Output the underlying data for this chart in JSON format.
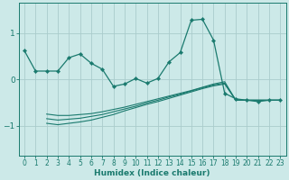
{
  "xlabel": "Humidex (Indice chaleur)",
  "bg_color": "#cce9e8",
  "grid_color": "#aacccc",
  "line_color": "#1a7a6e",
  "xlim": [
    -0.5,
    23.5
  ],
  "ylim": [
    -1.65,
    1.65
  ],
  "yticks": [
    -1,
    0,
    1
  ],
  "xticks": [
    0,
    1,
    2,
    3,
    4,
    5,
    6,
    7,
    8,
    9,
    10,
    11,
    12,
    13,
    14,
    15,
    16,
    17,
    18,
    19,
    20,
    21,
    22,
    23
  ],
  "main_line": {
    "x": [
      0,
      1,
      2,
      3,
      4,
      5,
      6,
      7,
      8,
      9,
      10,
      11,
      12,
      13,
      14,
      15,
      16,
      17,
      18,
      19,
      20,
      21,
      22,
      23
    ],
    "y": [
      0.62,
      0.18,
      0.18,
      0.18,
      0.47,
      0.55,
      0.35,
      0.22,
      -0.15,
      -0.1,
      0.02,
      -0.08,
      0.02,
      0.38,
      0.58,
      1.28,
      1.3,
      0.85,
      -0.3,
      -0.42,
      -0.45,
      -0.48,
      -0.45,
      -0.45
    ]
  },
  "lower_line1": {
    "x": [
      2,
      3,
      4,
      5,
      6,
      7,
      8,
      9,
      10,
      11,
      12,
      13,
      14,
      15,
      16,
      17,
      18,
      19,
      20,
      21,
      22,
      23
    ],
    "y": [
      -0.75,
      -0.78,
      -0.78,
      -0.76,
      -0.74,
      -0.7,
      -0.65,
      -0.6,
      -0.54,
      -0.48,
      -0.42,
      -0.36,
      -0.3,
      -0.24,
      -0.17,
      -0.1,
      -0.05,
      -0.45,
      -0.45,
      -0.45,
      -0.45,
      -0.45
    ]
  },
  "lower_line2": {
    "x": [
      2,
      3,
      4,
      5,
      6,
      7,
      8,
      9,
      10,
      11,
      12,
      13,
      14,
      15,
      16,
      17,
      18,
      19,
      20,
      21,
      22,
      23
    ],
    "y": [
      -0.85,
      -0.88,
      -0.86,
      -0.84,
      -0.8,
      -0.76,
      -0.7,
      -0.64,
      -0.58,
      -0.51,
      -0.45,
      -0.38,
      -0.32,
      -0.25,
      -0.18,
      -0.12,
      -0.08,
      -0.45,
      -0.45,
      -0.45,
      -0.45,
      -0.45
    ]
  },
  "lower_line3": {
    "x": [
      2,
      3,
      4,
      5,
      6,
      7,
      8,
      9,
      10,
      11,
      12,
      13,
      14,
      15,
      16,
      17,
      18,
      19,
      20,
      21,
      22,
      23
    ],
    "y": [
      -0.95,
      -0.98,
      -0.95,
      -0.92,
      -0.88,
      -0.82,
      -0.76,
      -0.68,
      -0.61,
      -0.54,
      -0.48,
      -0.41,
      -0.34,
      -0.27,
      -0.2,
      -0.14,
      -0.1,
      -0.45,
      -0.45,
      -0.45,
      -0.45,
      -0.45
    ]
  }
}
